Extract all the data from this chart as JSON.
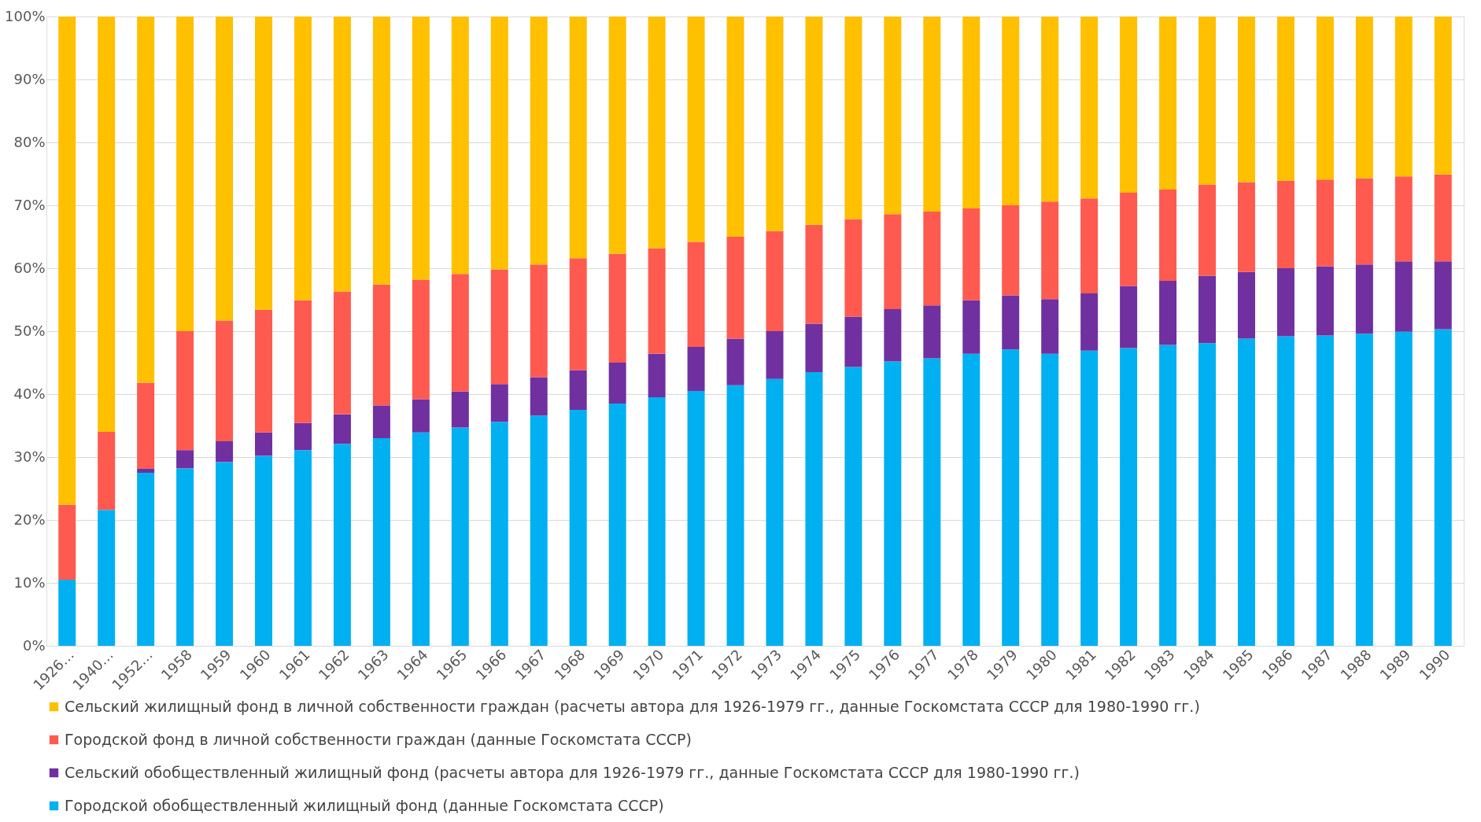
{
  "chart_data": {
    "type": "bar",
    "stacked": true,
    "categories": [
      "1926…",
      "1940…",
      "1952…",
      "1958",
      "1959",
      "1960",
      "1961",
      "1962",
      "1963",
      "1964",
      "1965",
      "1966",
      "1967",
      "1968",
      "1969",
      "1970",
      "1971",
      "1972",
      "1973",
      "1974",
      "1975",
      "1976",
      "1977",
      "1978",
      "1979",
      "1980",
      "1981",
      "1982",
      "1983",
      "1984",
      "1985",
      "1986",
      "1987",
      "1988",
      "1989",
      "1990"
    ],
    "series": [
      {
        "name": "Городской обобществленный жилищный фонд (данные Госкомстата СССР)",
        "color": "#00b0f0",
        "values": [
          10.5,
          21.6,
          27.5,
          28.2,
          29.2,
          30.2,
          31.1,
          32.1,
          33.0,
          33.9,
          34.7,
          35.6,
          36.6,
          37.5,
          38.5,
          39.5,
          40.5,
          41.4,
          42.4,
          43.5,
          44.3,
          45.2,
          45.7,
          46.4,
          47.1,
          46.4,
          46.9,
          47.3,
          47.8,
          48.1,
          48.8,
          49.2,
          49.3,
          49.6,
          49.9,
          50.3
        ]
      },
      {
        "name": "Сельский обобществленный жилищный фонд (расчеты автора для 1926-1979 гг., данные Госкомстата СССР для 1980-1990 гг.)",
        "color": "#7030a0",
        "values": [
          0,
          0,
          0.7,
          2.9,
          3.3,
          3.7,
          4.3,
          4.7,
          5.2,
          5.3,
          5.7,
          6.0,
          6.1,
          6.3,
          6.5,
          6.9,
          7.0,
          7.4,
          7.6,
          7.7,
          8.0,
          8.3,
          8.4,
          8.5,
          8.6,
          8.7,
          9.1,
          9.9,
          10.2,
          10.7,
          10.6,
          10.8,
          11.0,
          11.0,
          11.2,
          10.8
        ]
      },
      {
        "name": "Городской фонд в личной собственности граждан (данные Госкомстата СССР)",
        "color": "#ff5a50",
        "values": [
          11.9,
          12.4,
          13.6,
          18.9,
          19.2,
          19.5,
          19.5,
          19.5,
          19.2,
          19.0,
          18.7,
          18.2,
          17.9,
          17.8,
          17.3,
          16.8,
          16.7,
          16.2,
          15.9,
          15.7,
          15.5,
          15.1,
          14.9,
          14.6,
          14.3,
          15.5,
          15.1,
          14.8,
          14.5,
          14.5,
          14.3,
          13.9,
          13.8,
          13.7,
          13.5,
          13.8
        ]
      },
      {
        "name": "Сельский жилищный фонд в личной собственности граждан (расчеты автора для 1926-1979 гг., данные Госкомстата СССР для 1980-1990 гг.)",
        "color": "#ffc000",
        "values": [
          77.6,
          66.0,
          58.2,
          50.0,
          48.3,
          46.6,
          45.1,
          43.7,
          42.6,
          41.8,
          40.9,
          40.2,
          39.4,
          38.4,
          37.7,
          36.8,
          35.8,
          35.0,
          34.1,
          33.1,
          32.2,
          31.4,
          31.0,
          30.5,
          30.0,
          29.4,
          28.9,
          28.0,
          27.5,
          26.7,
          26.3,
          26.1,
          25.9,
          25.7,
          25.4,
          25.1
        ]
      }
    ],
    "ylim": [
      0,
      100
    ],
    "yticks": [
      {
        "value": 0,
        "label": "0%"
      },
      {
        "value": 10,
        "label": "10%"
      },
      {
        "value": 20,
        "label": "20%"
      },
      {
        "value": 30,
        "label": "30%"
      },
      {
        "value": 40,
        "label": "40%"
      },
      {
        "value": 50,
        "label": "50%"
      },
      {
        "value": 60,
        "label": "60%"
      },
      {
        "value": 70,
        "label": "70%"
      },
      {
        "value": 80,
        "label": "80%"
      },
      {
        "value": 90,
        "label": "90%"
      },
      {
        "value": 100,
        "label": "100%"
      }
    ],
    "grid": "y",
    "legend": "bottom"
  }
}
